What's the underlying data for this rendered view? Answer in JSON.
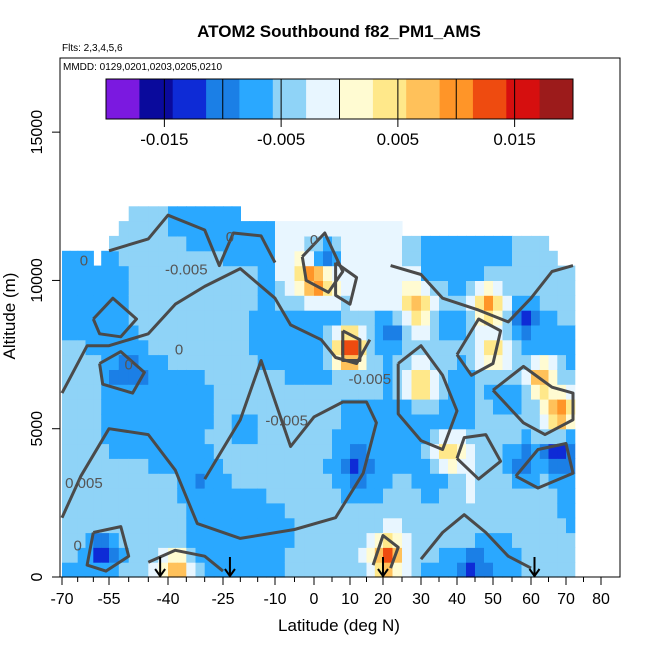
{
  "chart_data": {
    "type": "heatmap",
    "title": "ATOM2 Southbound f82_PM1_AMS",
    "notes": [
      "Flts: 2,3,4,5,6",
      "MMDD: 0129,0201,0203,0205,0210"
    ],
    "xlabel": "Latitude (deg N)",
    "ylabel": "Altitude (m)",
    "xlim": [
      -70,
      80
    ],
    "ylim": [
      0,
      17500
    ],
    "x_ticks_major": [
      -70,
      -55,
      -40,
      -25,
      -10,
      0,
      10,
      20,
      30,
      40,
      50,
      60,
      70,
      80
    ],
    "x_tick_labels": [
      "-70",
      "-55",
      "-40",
      "-25",
      "-10",
      "0",
      "10",
      "20",
      "30",
      "40",
      "50",
      "60",
      "70",
      "80"
    ],
    "x_ticks_minor": [
      -65,
      -60,
      -50,
      -45,
      -35,
      -30,
      -20,
      -15,
      -5,
      5,
      15,
      25,
      35,
      45,
      55,
      65,
      75
    ],
    "y_ticks": [
      0,
      5000,
      10000,
      15000
    ],
    "y_tick_labels": [
      "0",
      "5000",
      "10000",
      "15000"
    ],
    "colorbar": {
      "range": [
        -0.02,
        0.02
      ],
      "breaks": [
        -0.02,
        -0.015,
        -0.01,
        -0.005,
        0,
        0.005,
        0.01,
        0.015,
        0.02
      ],
      "tick_values": [
        -0.015,
        -0.005,
        0.005,
        0.015
      ],
      "tick_labels": [
        "-0.015",
        "-0.005",
        "0.005",
        "0.015"
      ],
      "colors": [
        "#7b19e0",
        "#0a0a9c",
        "#0e2bd6",
        "#1b7fe6",
        "#2aa8ff",
        "#8fd3f7",
        "#e8f6ff",
        "#fffbd2",
        "#ffe88a",
        "#ffc15a",
        "#ff9528",
        "#ee4b10",
        "#d60f0f",
        "#9c1b1b"
      ]
    },
    "flight_markers_lat": [
      -42,
      -23,
      20,
      61
    ],
    "contour_labels": [
      {
        "text": "0",
        "x": -50,
        "y": 7000
      },
      {
        "text": "0",
        "x": -63,
        "y": 10500
      },
      {
        "text": "0",
        "x": -37,
        "y": 7500
      },
      {
        "text": "0",
        "x": -23,
        "y": 11300
      },
      {
        "text": "0",
        "x": 0,
        "y": 11200
      },
      {
        "text": "0",
        "x": -65,
        "y": 900
      },
      {
        "text": "0.005",
        "x": -63,
        "y": 3000
      },
      {
        "text": "-0.005",
        "x": -7,
        "y": 5100
      },
      {
        "text": "-0.005",
        "x": 16,
        "y": 6500
      },
      {
        "text": "-0.005",
        "x": -35,
        "y": 10200
      }
    ],
    "data_extent": {
      "lat": [
        -70,
        72
      ],
      "alt": [
        0,
        12500
      ]
    },
    "notable_cells": [
      {
        "lat": -57,
        "alt": 900,
        "value": -0.013
      },
      {
        "lat": -31,
        "alt": 3400,
        "value": -0.009
      },
      {
        "lat": 12,
        "alt": 3700,
        "value": -0.012
      },
      {
        "lat": 10,
        "alt": 7700,
        "value": 0.016
      },
      {
        "lat": 1,
        "alt": 10200,
        "value": 0.019
      },
      {
        "lat": 3,
        "alt": 10800,
        "value": -0.011
      },
      {
        "lat": 21,
        "alt": 700,
        "value": 0.012
      },
      {
        "lat": 44,
        "alt": 200,
        "value": -0.012
      },
      {
        "lat": 58,
        "alt": 3900,
        "value": -0.011
      },
      {
        "lat": 58,
        "alt": 8700,
        "value": -0.012
      },
      {
        "lat": 68,
        "alt": 4200,
        "value": -0.013
      },
      {
        "lat": 63,
        "alt": 6700,
        "value": 0.009
      },
      {
        "lat": 68,
        "alt": 5600,
        "value": 0.011
      },
      {
        "lat": 49,
        "alt": 9200,
        "value": 0.009
      },
      {
        "lat": 29,
        "alt": 9100,
        "value": 0.008
      },
      {
        "lat": -38,
        "alt": 200,
        "value": 0.008
      },
      {
        "lat": 30,
        "alt": 6500,
        "value": 0.006
      },
      {
        "lat": 38,
        "alt": 4200,
        "value": 0.006
      },
      {
        "lat": 50,
        "alt": 7600,
        "value": 0.005
      },
      {
        "lat": -55,
        "alt": 8400,
        "value": -0.008
      },
      {
        "lat": -67,
        "alt": 9600,
        "value": -0.008
      },
      {
        "lat": -50,
        "alt": 7000,
        "value": -0.012
      },
      {
        "lat": 38,
        "alt": 8400,
        "value": -0.008
      },
      {
        "lat": 34,
        "alt": 3200,
        "value": -0.008
      },
      {
        "lat": -18,
        "alt": 5000,
        "value": -0.008
      },
      {
        "lat": 22,
        "alt": 8200,
        "value": -0.01
      }
    ]
  }
}
